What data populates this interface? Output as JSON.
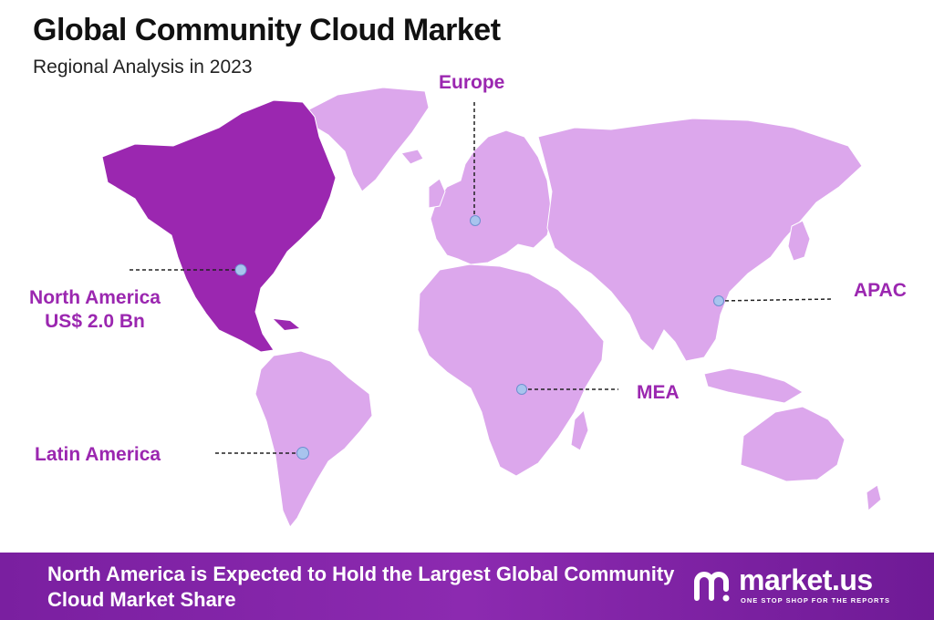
{
  "header": {
    "title": "Global Community Cloud Market",
    "subtitle": "Regional Analysis in 2023"
  },
  "colors": {
    "highlight_region": "#9b27b0",
    "other_regions": "#dca7ec",
    "label_text": "#9b27b0",
    "marker": "#a8c4ee",
    "footer_background": "#8424ac"
  },
  "regions": [
    {
      "id": "north-america",
      "name": "North America",
      "value": "US$ 2.0 Bn",
      "highlighted": true
    },
    {
      "id": "europe",
      "name": "Europe",
      "value": "",
      "highlighted": false
    },
    {
      "id": "apac",
      "name": "APAC",
      "value": "",
      "highlighted": false
    },
    {
      "id": "mea",
      "name": "MEA",
      "value": "",
      "highlighted": false
    },
    {
      "id": "latin-america",
      "name": "Latin America",
      "value": "",
      "highlighted": false
    }
  ],
  "footer": {
    "statement": "North America is Expected to Hold the Largest Global Community Cloud Market Share"
  },
  "brand": {
    "name": "market.us",
    "tagline": "ONE STOP SHOP FOR THE REPORTS",
    "logo_icon": "market-us-logo-icon"
  }
}
